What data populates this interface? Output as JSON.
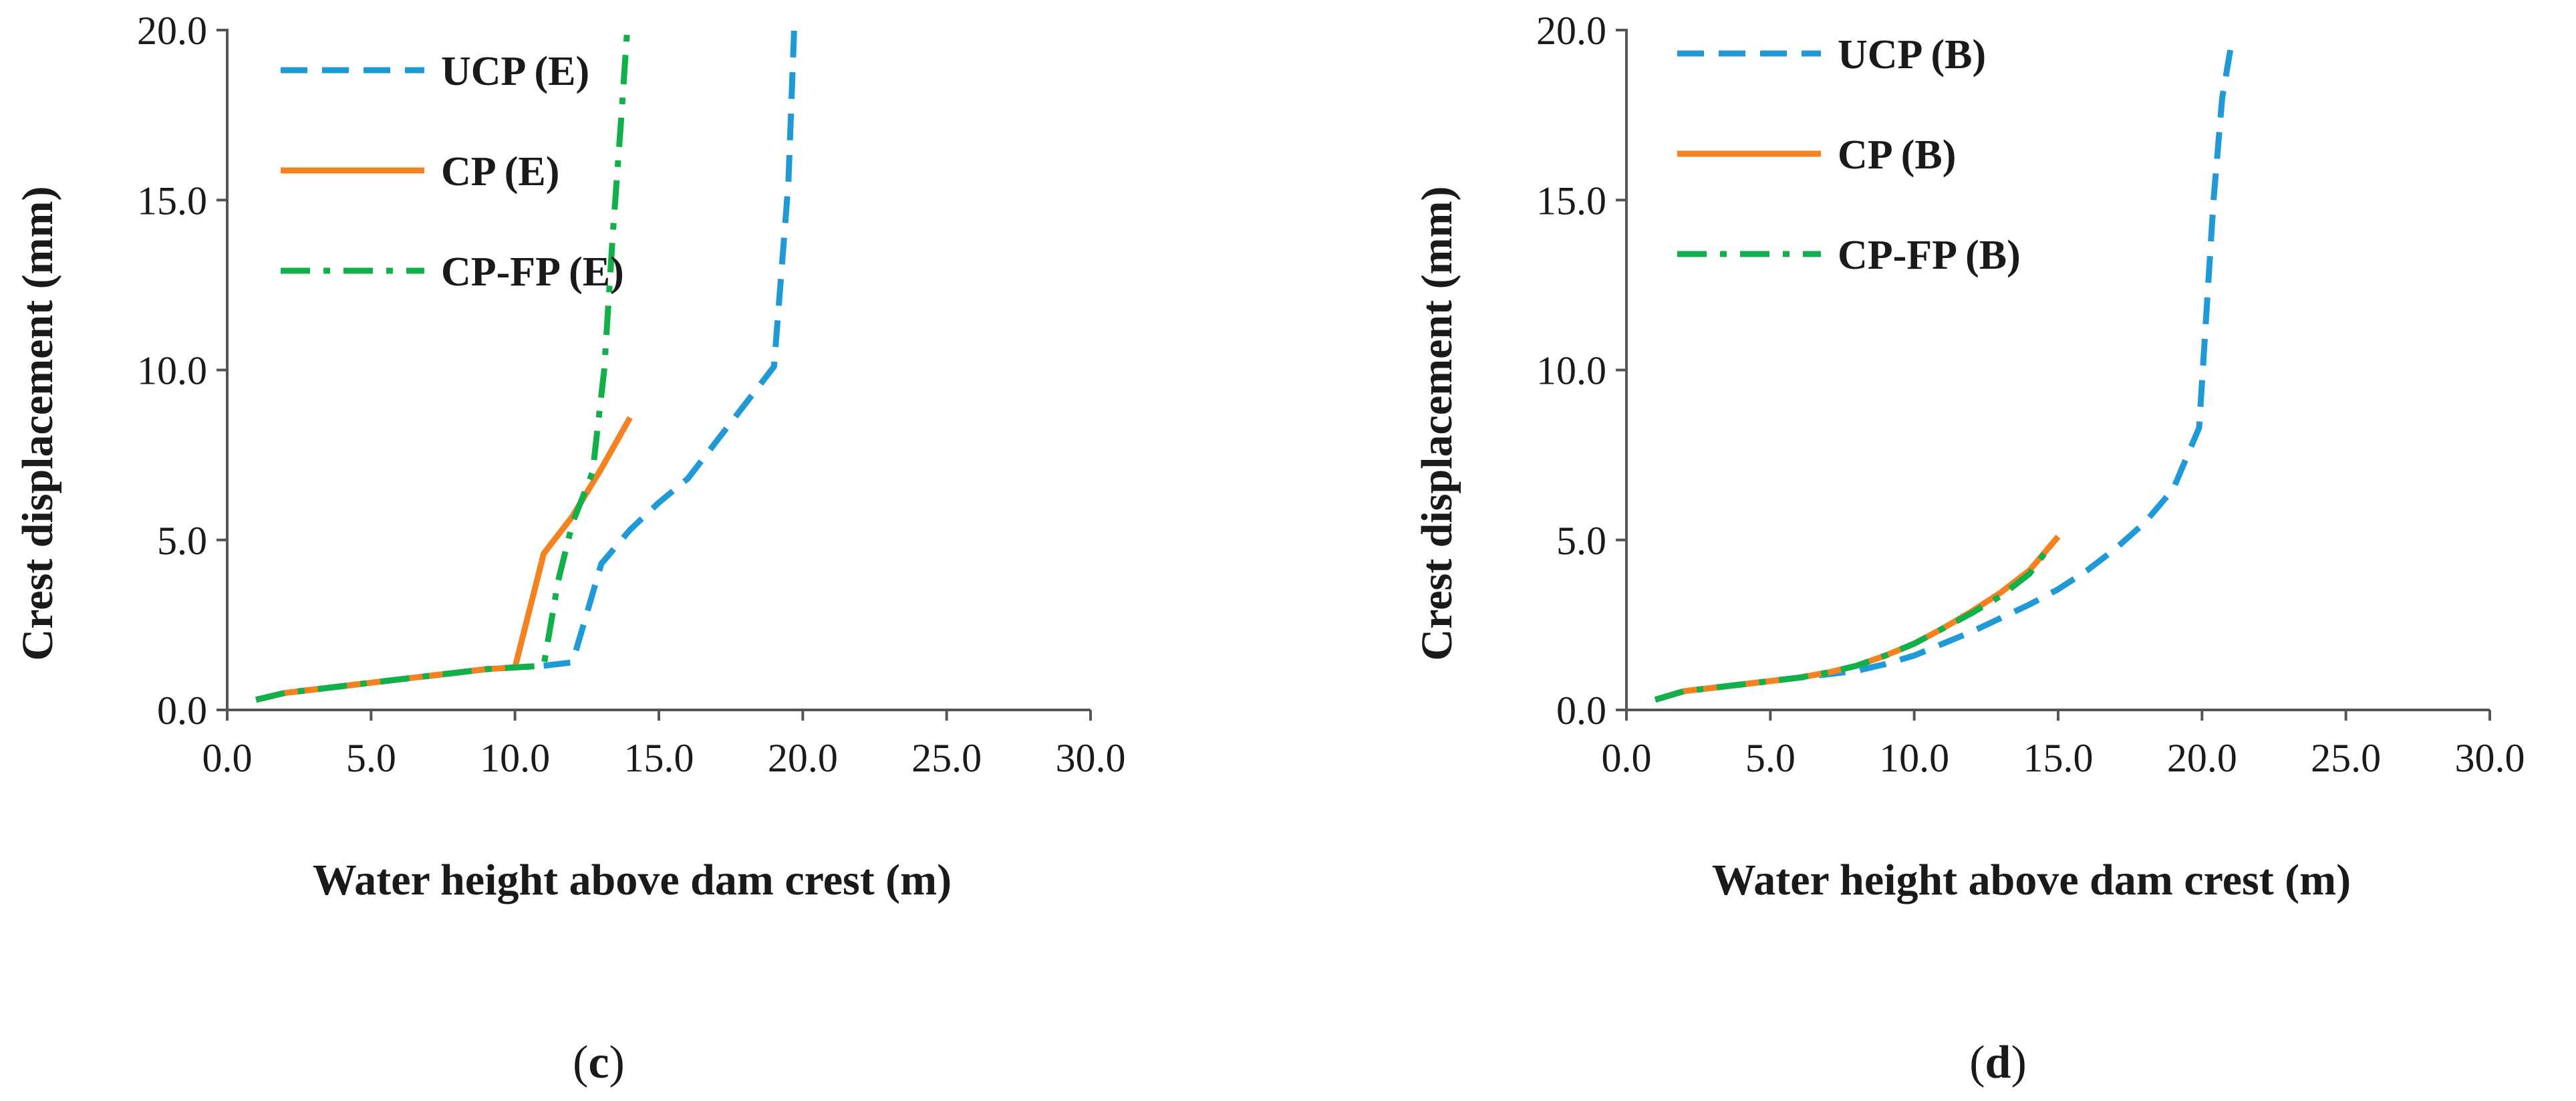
{
  "chart_data": [
    {
      "type": "line",
      "panel_label": "c",
      "title": "",
      "xlabel": "Water height above dam crest (m)",
      "ylabel": "Crest displacement (mm)",
      "xlim": [
        0,
        30
      ],
      "ylim": [
        0,
        20
      ],
      "xticks": [
        "0.0",
        "5.0",
        "10.0",
        "15.0",
        "20.0",
        "25.0",
        "30.0"
      ],
      "yticks": [
        "0.0",
        "5.0",
        "10.0",
        "15.0",
        "20.0"
      ],
      "legend_position": "top-left",
      "series": [
        {
          "name": "UCP (E)",
          "color": "#1f9ad6",
          "style": "dashed",
          "x": [
            1,
            2,
            3,
            4,
            5,
            6,
            7,
            8,
            9,
            10,
            11,
            12,
            13,
            14,
            15,
            16,
            17,
            18,
            19,
            19.5,
            19.7
          ],
          "y": [
            0.3,
            0.5,
            0.6,
            0.7,
            0.8,
            0.9,
            1.0,
            1.1,
            1.2,
            1.25,
            1.3,
            1.4,
            4.3,
            5.3,
            6.1,
            6.8,
            7.9,
            9.0,
            10.1,
            15.5,
            20.0
          ]
        },
        {
          "name": "CP (E)",
          "color": "#f58220",
          "style": "solid",
          "x": [
            1,
            2,
            3,
            4,
            5,
            6,
            7,
            8,
            9,
            10,
            11,
            12,
            13,
            14
          ],
          "y": [
            0.3,
            0.5,
            0.6,
            0.7,
            0.8,
            0.9,
            1.0,
            1.1,
            1.2,
            1.25,
            4.6,
            5.7,
            7.1,
            8.6
          ]
        },
        {
          "name": "CP-FP (E)",
          "color": "#12b04b",
          "style": "dash-dot",
          "x": [
            1,
            2,
            3,
            4,
            5,
            6,
            7,
            8,
            9,
            10,
            11,
            11.5,
            12,
            12.7,
            13.1,
            13.4,
            13.7,
            13.9
          ],
          "y": [
            0.3,
            0.5,
            0.6,
            0.7,
            0.8,
            0.9,
            1.0,
            1.1,
            1.2,
            1.25,
            1.3,
            3.8,
            5.5,
            7.0,
            10.0,
            14.0,
            17.5,
            20.0
          ]
        }
      ]
    },
    {
      "type": "line",
      "panel_label": "d",
      "title": "",
      "xlabel": "Water height above dam crest (m)",
      "ylabel": "Crest displacement (mm)",
      "xlim": [
        0,
        30
      ],
      "ylim": [
        0,
        20
      ],
      "xticks": [
        "0.0",
        "5.0",
        "10.0",
        "15.0",
        "20.0",
        "25.0",
        "30.0"
      ],
      "yticks": [
        "0.0",
        "5.0",
        "10.0",
        "15.0",
        "20.0"
      ],
      "legend_position": "top-left",
      "series": [
        {
          "name": "UCP (B)",
          "color": "#1f9ad6",
          "style": "dashed",
          "x": [
            1,
            2,
            3,
            4,
            5,
            6,
            7,
            8,
            9,
            10,
            11,
            12,
            13,
            14,
            15,
            16,
            17,
            18,
            19,
            19.9,
            20.4,
            20.7,
            21
          ],
          "y": [
            0.3,
            0.55,
            0.65,
            0.75,
            0.85,
            0.95,
            1.05,
            1.15,
            1.35,
            1.6,
            1.95,
            2.3,
            2.7,
            3.1,
            3.55,
            4.1,
            4.75,
            5.5,
            6.5,
            8.3,
            15.0,
            18.0,
            19.5
          ]
        },
        {
          "name": "CP (B)",
          "color": "#f58220",
          "style": "solid",
          "x": [
            1,
            2,
            3,
            4,
            5,
            6,
            7,
            8,
            9,
            10,
            11,
            12,
            13,
            14,
            15
          ],
          "y": [
            0.3,
            0.55,
            0.65,
            0.75,
            0.85,
            0.95,
            1.1,
            1.3,
            1.6,
            1.95,
            2.4,
            2.9,
            3.45,
            4.1,
            5.1
          ]
        },
        {
          "name": "CP-FP (B)",
          "color": "#12b04b",
          "style": "dash-dot",
          "x": [
            1,
            2,
            3,
            4,
            5,
            6,
            7,
            8,
            9,
            10,
            11,
            12,
            13,
            14,
            14.7
          ],
          "y": [
            0.3,
            0.55,
            0.65,
            0.75,
            0.85,
            0.95,
            1.1,
            1.3,
            1.6,
            1.95,
            2.4,
            2.85,
            3.35,
            4.0,
            4.8
          ]
        }
      ]
    }
  ]
}
